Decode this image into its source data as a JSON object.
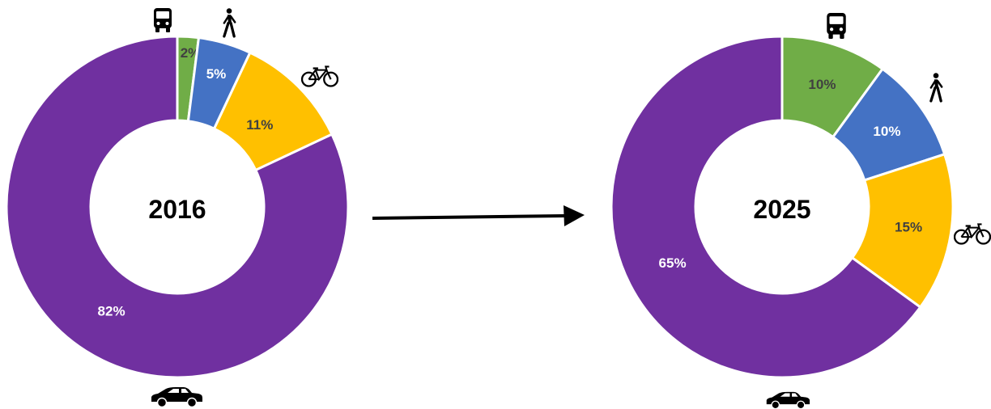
{
  "colors": {
    "transit": "#70AD47",
    "walk": "#4472C4",
    "bike": "#FFC000",
    "car": "#7030A0",
    "arrow": "#000000"
  },
  "chart_data": [
    {
      "type": "pie",
      "donut": true,
      "title": "",
      "center_label": "2016",
      "categories": [
        "transit",
        "walk",
        "bike",
        "car"
      ],
      "icons": [
        "bus-icon",
        "pedestrian-icon",
        "bicycle-icon",
        "car-icon"
      ],
      "values": [
        2,
        5,
        11,
        82
      ],
      "labels": [
        "2%",
        "5%",
        "11%",
        "82%"
      ]
    },
    {
      "type": "pie",
      "donut": true,
      "title": "",
      "center_label": "2025",
      "categories": [
        "transit",
        "walk",
        "bike",
        "car"
      ],
      "icons": [
        "bus-icon",
        "pedestrian-icon",
        "bicycle-icon",
        "car-icon"
      ],
      "values": [
        10,
        10,
        15,
        65
      ],
      "labels": [
        "10%",
        "10%",
        "15%",
        "65%"
      ]
    }
  ]
}
